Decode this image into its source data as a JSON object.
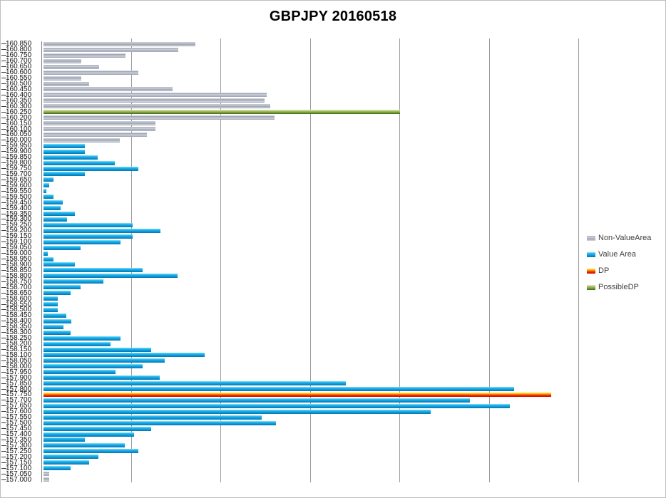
{
  "title": "GBPJPY 20160518",
  "legend": {
    "items": [
      {
        "label": "Non-ValueArea",
        "key": "non_value_area"
      },
      {
        "label": "Value Area",
        "key": "value_area"
      },
      {
        "label": "DP",
        "key": "dp"
      },
      {
        "label": "PossibleDP",
        "key": "possible_dp"
      }
    ]
  },
  "colors": {
    "non_value_area": "#a9aebc",
    "value_area": "#18a5e2",
    "dp": "#e81c00",
    "possible_dp": "#7da348",
    "gridline": "#9b9b9b",
    "axis": "#7f7f7f",
    "title_text": "#000000",
    "legend_text": "#3f3f3f"
  },
  "chart_data": {
    "type": "bar",
    "orientation": "horizontal",
    "title": "GBPJPY 20160518",
    "xlabel": "",
    "ylabel": "",
    "x_axis": {
      "labels_visible": false,
      "gridline_count": 6,
      "xlim": [
        0,
        753
      ],
      "units": "relative length (axis unlabeled)"
    },
    "legend_position": "right",
    "rows": [
      {
        "price": "160.850",
        "value": 213,
        "area": "non_value_area"
      },
      {
        "price": "160.800",
        "value": 189,
        "area": "non_value_area"
      },
      {
        "price": "160.750",
        "value": 115,
        "area": "non_value_area"
      },
      {
        "price": "160.700",
        "value": 53,
        "area": "non_value_area"
      },
      {
        "price": "160.650",
        "value": 78,
        "area": "non_value_area"
      },
      {
        "price": "160.600",
        "value": 133,
        "area": "non_value_area"
      },
      {
        "price": "160.550",
        "value": 53,
        "area": "non_value_area"
      },
      {
        "price": "160.500",
        "value": 64,
        "area": "non_value_area"
      },
      {
        "price": "160.450",
        "value": 181,
        "area": "non_value_area"
      },
      {
        "price": "160.400",
        "value": 313,
        "area": "non_value_area"
      },
      {
        "price": "160.350",
        "value": 310,
        "area": "non_value_area"
      },
      {
        "price": "160.300",
        "value": 318,
        "area": "non_value_area"
      },
      {
        "price": "160.250",
        "value": 500,
        "area": "possible_dp"
      },
      {
        "price": "160.200",
        "value": 324,
        "area": "non_value_area"
      },
      {
        "price": "160.150",
        "value": 157,
        "area": "non_value_area"
      },
      {
        "price": "160.100",
        "value": 157,
        "area": "non_value_area"
      },
      {
        "price": "160.050",
        "value": 145,
        "area": "non_value_area"
      },
      {
        "price": "160.000",
        "value": 107,
        "area": "non_value_area"
      },
      {
        "price": "159.950",
        "value": 58,
        "area": "value_area"
      },
      {
        "price": "159.900",
        "value": 58,
        "area": "value_area"
      },
      {
        "price": "159.850",
        "value": 76,
        "area": "value_area"
      },
      {
        "price": "159.800",
        "value": 100,
        "area": "value_area"
      },
      {
        "price": "159.750",
        "value": 133,
        "area": "value_area"
      },
      {
        "price": "159.700",
        "value": 58,
        "area": "value_area"
      },
      {
        "price": "159.650",
        "value": 14,
        "area": "value_area"
      },
      {
        "price": "159.600",
        "value": 8,
        "area": "value_area"
      },
      {
        "price": "159.550",
        "value": 4,
        "area": "value_area"
      },
      {
        "price": "159.500",
        "value": 14,
        "area": "value_area"
      },
      {
        "price": "159.450",
        "value": 27,
        "area": "value_area"
      },
      {
        "price": "159.400",
        "value": 24,
        "area": "value_area"
      },
      {
        "price": "159.350",
        "value": 44,
        "area": "value_area"
      },
      {
        "price": "159.300",
        "value": 33,
        "area": "value_area"
      },
      {
        "price": "159.250",
        "value": 125,
        "area": "value_area"
      },
      {
        "price": "159.200",
        "value": 164,
        "area": "value_area"
      },
      {
        "price": "159.150",
        "value": 125,
        "area": "value_area"
      },
      {
        "price": "159.100",
        "value": 108,
        "area": "value_area"
      },
      {
        "price": "159.050",
        "value": 52,
        "area": "value_area"
      },
      {
        "price": "159.000",
        "value": 6,
        "area": "value_area"
      },
      {
        "price": "158.950",
        "value": 14,
        "area": "value_area"
      },
      {
        "price": "158.900",
        "value": 44,
        "area": "value_area"
      },
      {
        "price": "158.850",
        "value": 139,
        "area": "value_area"
      },
      {
        "price": "158.800",
        "value": 188,
        "area": "value_area"
      },
      {
        "price": "158.750",
        "value": 84,
        "area": "value_area"
      },
      {
        "price": "158.700",
        "value": 52,
        "area": "value_area"
      },
      {
        "price": "158.650",
        "value": 38,
        "area": "value_area"
      },
      {
        "price": "158.600",
        "value": 20,
        "area": "value_area"
      },
      {
        "price": "158.550",
        "value": 20,
        "area": "value_area"
      },
      {
        "price": "158.500",
        "value": 20,
        "area": "value_area"
      },
      {
        "price": "158.450",
        "value": 32,
        "area": "value_area"
      },
      {
        "price": "158.400",
        "value": 39,
        "area": "value_area"
      },
      {
        "price": "158.350",
        "value": 28,
        "area": "value_area"
      },
      {
        "price": "158.300",
        "value": 38,
        "area": "value_area"
      },
      {
        "price": "158.250",
        "value": 108,
        "area": "value_area"
      },
      {
        "price": "158.200",
        "value": 94,
        "area": "value_area"
      },
      {
        "price": "158.150",
        "value": 151,
        "area": "value_area"
      },
      {
        "price": "158.100",
        "value": 226,
        "area": "value_area"
      },
      {
        "price": "158.050",
        "value": 170,
        "area": "value_area"
      },
      {
        "price": "158.000",
        "value": 139,
        "area": "value_area"
      },
      {
        "price": "157.950",
        "value": 101,
        "area": "value_area"
      },
      {
        "price": "157.900",
        "value": 163,
        "area": "value_area"
      },
      {
        "price": "157.850",
        "value": 424,
        "area": "value_area"
      },
      {
        "price": "157.800",
        "value": 660,
        "area": "value_area"
      },
      {
        "price": "157.750",
        "value": 712,
        "area": "dp"
      },
      {
        "price": "157.700",
        "value": 598,
        "area": "value_area"
      },
      {
        "price": "157.650",
        "value": 654,
        "area": "value_area"
      },
      {
        "price": "157.600",
        "value": 543,
        "area": "value_area"
      },
      {
        "price": "157.550",
        "value": 306,
        "area": "value_area"
      },
      {
        "price": "157.500",
        "value": 326,
        "area": "value_area"
      },
      {
        "price": "157.450",
        "value": 151,
        "area": "value_area"
      },
      {
        "price": "157.400",
        "value": 127,
        "area": "value_area"
      },
      {
        "price": "157.350",
        "value": 58,
        "area": "value_area"
      },
      {
        "price": "157.300",
        "value": 114,
        "area": "value_area"
      },
      {
        "price": "157.250",
        "value": 133,
        "area": "value_area"
      },
      {
        "price": "157.200",
        "value": 77,
        "area": "value_area"
      },
      {
        "price": "157.150",
        "value": 64,
        "area": "value_area"
      },
      {
        "price": "157.100",
        "value": 38,
        "area": "value_area"
      },
      {
        "price": "157.050",
        "value": 8,
        "area": "non_value_area"
      },
      {
        "price": "157.000",
        "value": 8,
        "area": "non_value_area"
      }
    ]
  }
}
